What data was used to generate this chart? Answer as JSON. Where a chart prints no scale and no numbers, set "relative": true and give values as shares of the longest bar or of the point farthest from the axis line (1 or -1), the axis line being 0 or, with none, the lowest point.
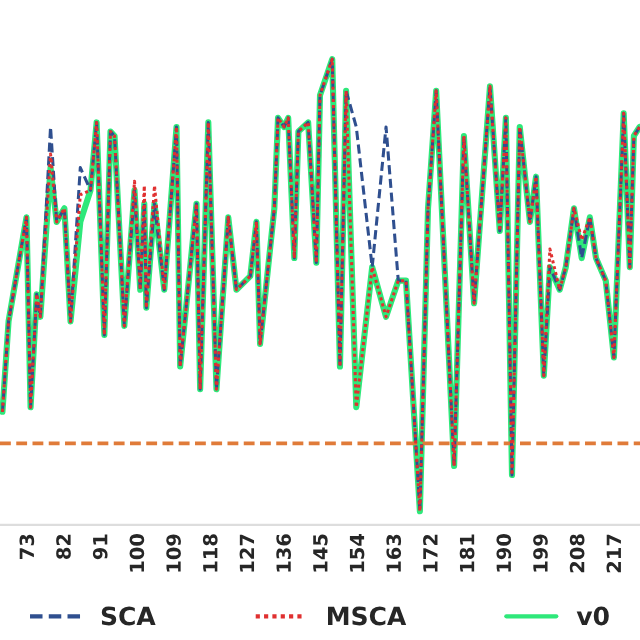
{
  "chart_data": {
    "type": "line",
    "relative": true,
    "x": [
      66.6,
      68.1,
      72.5,
      73.5,
      75.0,
      75.9,
      78.4,
      79.9,
      81.8,
      83.3,
      85.7,
      88.2,
      89.7,
      91.6,
      93.1,
      94.1,
      96.5,
      99.0,
      100.4,
      101.4,
      101.9,
      103.9,
      106.3,
      109.3,
      110.2,
      114.2,
      115.1,
      117.1,
      119.1,
      122.0,
      124.0,
      127.4,
      128.9,
      129.8,
      133.3,
      134.2,
      135.7,
      136.7,
      138.2,
      139.2,
      141.6,
      143.6,
      144.5,
      147.5,
      149.4,
      150.9,
      153.4,
      157.3,
      160.7,
      163.7,
      165.6,
      169.0,
      171.0,
      173.0,
      177.4,
      179.8,
      182.3,
      186.2,
      188.6,
      190.1,
      191.6,
      193.5,
      196.0,
      197.5,
      199.4,
      200.9,
      203.3,
      204.8,
      206.8,
      208.7,
      210.7,
      212.2,
      214.6,
      216.6,
      219.0,
      220.5,
      221.5,
      222.9
    ],
    "xlim": [
      66,
      223
    ],
    "xticks": [
      73,
      82,
      91,
      100,
      109,
      118,
      127,
      136,
      145,
      154,
      163,
      172,
      181,
      190,
      199,
      208,
      217
    ],
    "series": [
      {
        "name": "SCA",
        "color": "#2f4f8f",
        "line_style": "dashed",
        "values": [
          0.22,
          0.42,
          0.65,
          0.23,
          0.48,
          0.43,
          0.85,
          0.64,
          0.67,
          0.42,
          0.76,
          0.71,
          0.86,
          0.39,
          0.84,
          0.83,
          0.41,
          0.71,
          0.49,
          0.68,
          0.45,
          0.68,
          0.49,
          0.85,
          0.32,
          0.68,
          0.27,
          0.86,
          0.27,
          0.65,
          0.49,
          0.52,
          0.64,
          0.37,
          0.67,
          0.87,
          0.85,
          0.87,
          0.56,
          0.84,
          0.86,
          0.55,
          0.92,
          1.0,
          0.32,
          0.93,
          0.85,
          0.54,
          0.85,
          0.51,
          0.51,
          0.0,
          0.67,
          0.93,
          0.1,
          0.83,
          0.46,
          0.94,
          0.62,
          0.87,
          0.08,
          0.85,
          0.64,
          0.74,
          0.3,
          0.54,
          0.49,
          0.54,
          0.67,
          0.56,
          0.65,
          0.56,
          0.51,
          0.34,
          0.88,
          0.54,
          0.83,
          0.85
        ]
      },
      {
        "name": "MSCA",
        "color": "#e03030",
        "line_style": "dotted",
        "values": [
          0.22,
          0.42,
          0.65,
          0.23,
          0.48,
          0.43,
          0.79,
          0.64,
          0.67,
          0.42,
          0.7,
          0.71,
          0.86,
          0.39,
          0.84,
          0.83,
          0.41,
          0.73,
          0.49,
          0.72,
          0.45,
          0.72,
          0.49,
          0.85,
          0.32,
          0.68,
          0.27,
          0.86,
          0.27,
          0.65,
          0.49,
          0.52,
          0.64,
          0.37,
          0.67,
          0.87,
          0.85,
          0.87,
          0.56,
          0.84,
          0.86,
          0.55,
          0.92,
          1.0,
          0.32,
          0.93,
          0.23,
          0.54,
          0.43,
          0.51,
          0.51,
          0.0,
          0.67,
          0.93,
          0.1,
          0.83,
          0.46,
          0.94,
          0.62,
          0.87,
          0.08,
          0.85,
          0.64,
          0.74,
          0.3,
          0.58,
          0.49,
          0.54,
          0.67,
          0.6,
          0.65,
          0.56,
          0.51,
          0.34,
          0.88,
          0.54,
          0.83,
          0.85
        ]
      },
      {
        "name": "v0",
        "color": "#2ee87a",
        "line_style": "solid",
        "values": [
          0.22,
          0.42,
          0.65,
          0.23,
          0.48,
          0.43,
          0.76,
          0.64,
          0.67,
          0.42,
          0.64,
          0.71,
          0.86,
          0.39,
          0.84,
          0.83,
          0.41,
          0.71,
          0.49,
          0.68,
          0.45,
          0.68,
          0.49,
          0.85,
          0.32,
          0.68,
          0.27,
          0.86,
          0.27,
          0.65,
          0.49,
          0.52,
          0.64,
          0.37,
          0.67,
          0.87,
          0.85,
          0.87,
          0.56,
          0.84,
          0.86,
          0.55,
          0.92,
          1.0,
          0.32,
          0.93,
          0.23,
          0.54,
          0.43,
          0.51,
          0.51,
          0.0,
          0.67,
          0.93,
          0.1,
          0.83,
          0.46,
          0.94,
          0.62,
          0.87,
          0.08,
          0.85,
          0.64,
          0.74,
          0.3,
          0.54,
          0.49,
          0.54,
          0.67,
          0.56,
          0.65,
          0.56,
          0.51,
          0.34,
          0.88,
          0.54,
          0.83,
          0.85
        ]
      }
    ],
    "ref_lines": [
      {
        "axis": "y",
        "value": 0.15,
        "color": "#e07b39",
        "line_style": "dashed"
      }
    ],
    "legend": "bottom"
  }
}
